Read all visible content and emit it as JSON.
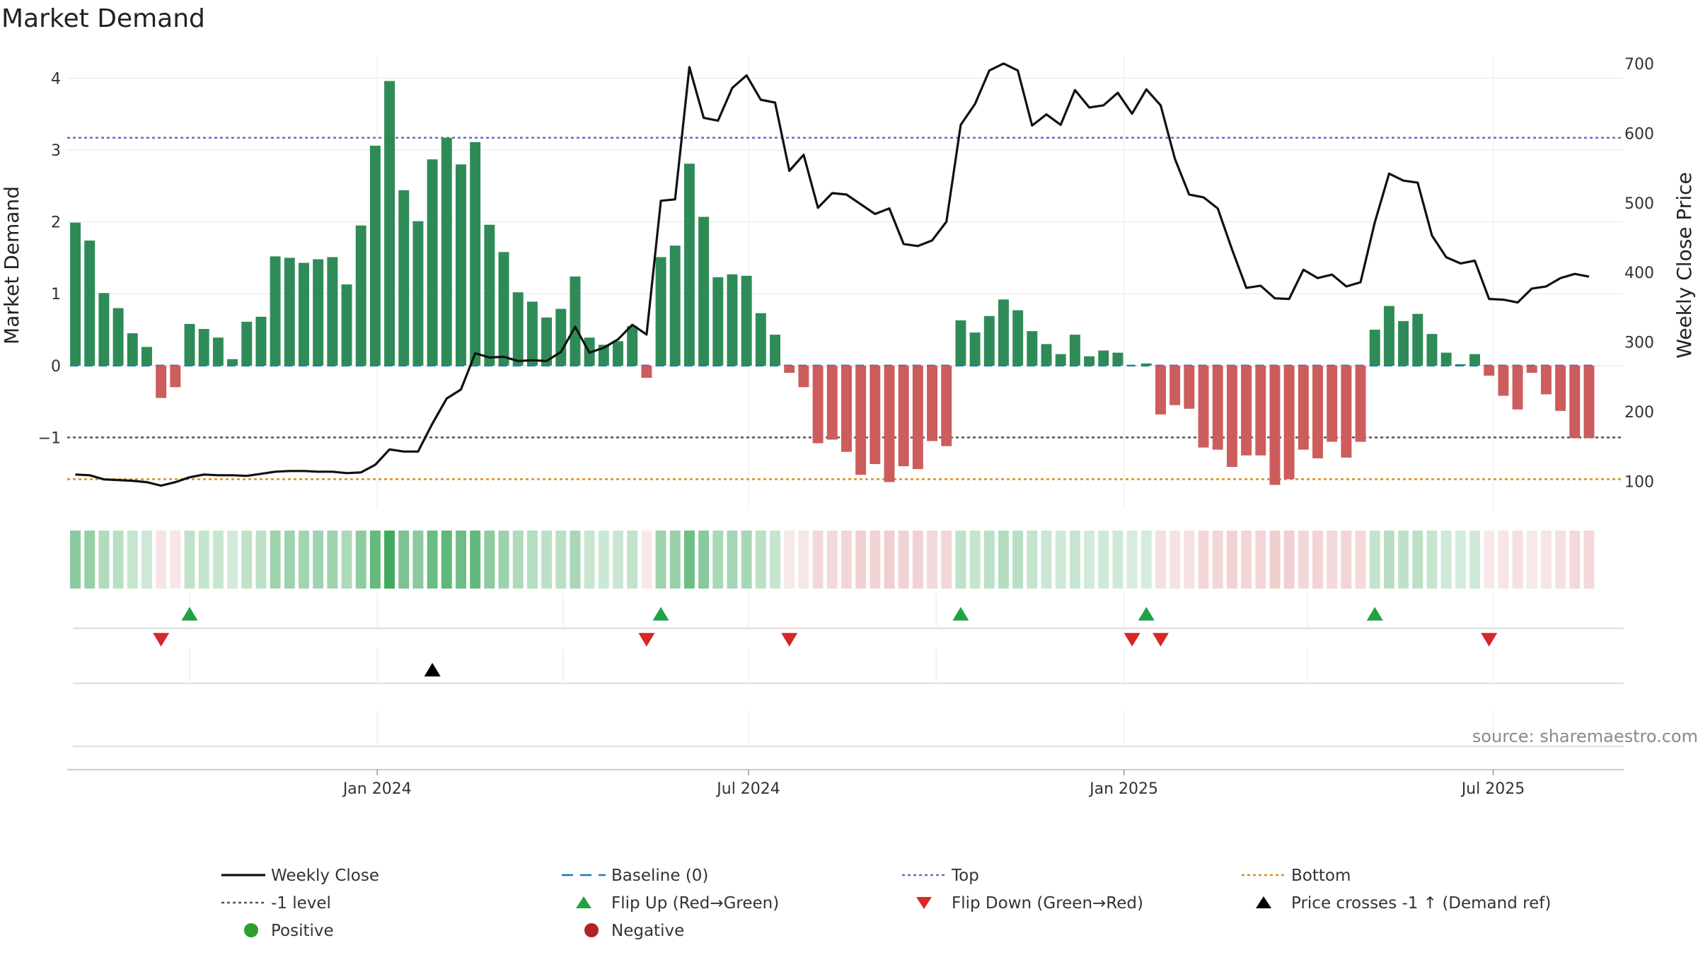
{
  "title": "Market Demand",
  "source": "source: sharemaestro.com",
  "colors": {
    "positive_bar": "#2e8b57",
    "negative_bar": "#cd5c5c",
    "close_line": "#111111",
    "baseline": "#1f77b4",
    "top": "#6b6bbf",
    "minus_one": "#555555",
    "bottom": "#e08c1a",
    "flip_up": "#22a244",
    "flip_down": "#d62728",
    "cross_marker": "#000000",
    "positive_dot": "#2ca02c",
    "negative_dot": "#b22222"
  },
  "chart_data": {
    "type": "bar",
    "x_start": "2023-08-06",
    "x_interval_days": 7,
    "x_range": [
      "2023-08-02",
      "2025-09-03"
    ],
    "x_ticks": [
      {
        "date": "2024-01-01",
        "label": "Jan 2024"
      },
      {
        "date": "2024-07-01",
        "label": "Jul 2024"
      },
      {
        "date": "2025-01-01",
        "label": "Jan 2025"
      },
      {
        "date": "2025-07-01",
        "label": "Jul 2025"
      }
    ],
    "left_axis": {
      "label": "Market Demand",
      "ylim": [
        -2.0,
        4.3
      ],
      "ticks": [
        -1,
        0,
        1,
        2,
        3,
        4
      ],
      "tick_labels": [
        "−1",
        "0",
        "1",
        "2",
        "3",
        "4"
      ]
    },
    "right_axis": {
      "label": "Weekly Close Price",
      "ylim": [
        60,
        710
      ],
      "ticks": [
        100,
        200,
        300,
        400,
        500,
        600,
        700
      ],
      "tick_labels": [
        "100",
        "200",
        "300",
        "400",
        "500",
        "600",
        "700"
      ]
    },
    "reference_lines": {
      "baseline": 0,
      "top": 3.17,
      "minus_one": -1,
      "bottom": -1.58
    },
    "series": [
      {
        "name": "Market Demand",
        "values": [
          1.99,
          1.74,
          1.01,
          0.8,
          0.45,
          0.26,
          -0.45,
          -0.3,
          0.58,
          0.51,
          0.39,
          0.09,
          0.61,
          0.68,
          1.52,
          1.5,
          1.43,
          1.48,
          1.51,
          1.13,
          1.95,
          3.06,
          3.96,
          2.44,
          2.01,
          2.87,
          3.17,
          2.8,
          3.11,
          1.96,
          1.58,
          1.02,
          0.89,
          0.67,
          0.79,
          1.24,
          0.39,
          0.29,
          0.34,
          0.55,
          -0.17,
          1.51,
          1.67,
          2.81,
          2.07,
          1.23,
          1.27,
          1.25,
          0.73,
          0.43,
          -0.1,
          -0.3,
          -1.08,
          -1.03,
          -1.2,
          -1.52,
          -1.37,
          -1.62,
          -1.4,
          -1.44,
          -1.05,
          -1.12,
          0.63,
          0.46,
          0.69,
          0.92,
          0.77,
          0.48,
          0.3,
          0.16,
          0.43,
          0.13,
          0.21,
          0.18,
          0.0,
          0.03,
          -0.68,
          -0.55,
          -0.6,
          -1.14,
          -1.17,
          -1.41,
          -1.25,
          -1.25,
          -1.66,
          -1.58,
          -1.17,
          -1.29,
          -1.06,
          -1.28,
          -1.06,
          0.5,
          0.83,
          0.62,
          0.72,
          0.44,
          0.18,
          0.02,
          0.16,
          -0.14,
          -0.42,
          -0.61,
          -0.1,
          -0.4,
          -0.63,
          -1.01,
          -1.01
        ]
      },
      {
        "name": "Weekly Close",
        "values": [
          110,
          109,
          103,
          102,
          101,
          99,
          94,
          99,
          106,
          110,
          109,
          109,
          108,
          111,
          114,
          115,
          115,
          114,
          114,
          112,
          113,
          124,
          146,
          143,
          143,
          183,
          219,
          232,
          284,
          278,
          279,
          273,
          274,
          273,
          286,
          322,
          285,
          292,
          304,
          325,
          311,
          503,
          505,
          695,
          622,
          618,
          665,
          683,
          648,
          644,
          546,
          569,
          493,
          514,
          512,
          498,
          484,
          492,
          441,
          438,
          446,
          473,
          612,
          642,
          690,
          700,
          690,
          611,
          627,
          612,
          662,
          637,
          640,
          658,
          628,
          663,
          640,
          563,
          512,
          508,
          492,
          433,
          378,
          381,
          363,
          362,
          404,
          392,
          397,
          380,
          386,
          472,
          542,
          532,
          529,
          453,
          422,
          413,
          417,
          362,
          361,
          357,
          377,
          380,
          392,
          398,
          394
        ]
      }
    ],
    "heat_strip": {
      "label": "demand heat strip"
    },
    "flip_up_weeks": [
      8,
      41,
      62,
      75,
      91
    ],
    "flip_down_weeks": [
      6,
      40,
      50,
      74,
      76,
      99
    ],
    "price_cross_weeks": [
      25
    ],
    "legend": [
      {
        "label": "Weekly Close",
        "symbol": "solid"
      },
      {
        "label": "Baseline (0)",
        "symbol": "dash"
      },
      {
        "label": "Top",
        "symbol": "dot"
      },
      {
        "label": "Bottom",
        "symbol": "dot"
      },
      {
        "label": "-1 level",
        "symbol": "dot"
      },
      {
        "label": "Flip Up (Red→Green)",
        "symbol": "triangle-up"
      },
      {
        "label": "Flip Down (Green→Red)",
        "symbol": "triangle-down"
      },
      {
        "label": "Price crosses -1 ↑ (Demand ref)",
        "symbol": "triangle-up"
      },
      {
        "label": "Positive",
        "symbol": "circle"
      },
      {
        "label": "Negative",
        "symbol": "circle"
      }
    ]
  }
}
